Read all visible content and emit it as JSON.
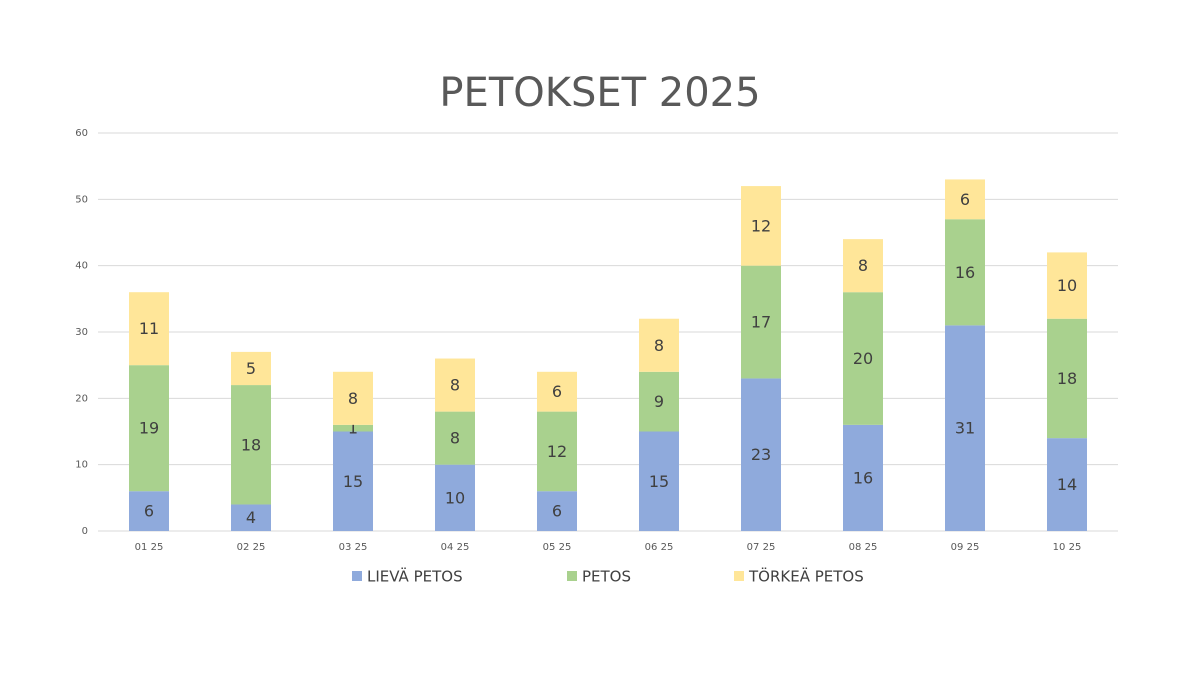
{
  "chart_data": {
    "type": "stacked_bar",
    "title": "PETOKSET 2025",
    "categories": [
      "01 25",
      "02 25",
      "03 25",
      "04 25",
      "05 25",
      "06 25",
      "07 25",
      "08 25",
      "09 25",
      "10 25"
    ],
    "series": [
      {
        "name": "LIEVÄ PETOS",
        "color": "#8faadc",
        "values": [
          6,
          4,
          15,
          10,
          6,
          15,
          23,
          16,
          31,
          14
        ]
      },
      {
        "name": "PETOS",
        "color": "#a9d18e",
        "values": [
          19,
          18,
          1,
          8,
          12,
          9,
          17,
          20,
          16,
          18
        ]
      },
      {
        "name": "TÖRKEÄ PETOS",
        "color": "#ffe699",
        "values": [
          11,
          5,
          8,
          8,
          6,
          8,
          12,
          8,
          6,
          10
        ]
      }
    ],
    "ylim": [
      0,
      60
    ],
    "yticks": [
      0,
      10,
      20,
      30,
      40,
      50,
      60
    ],
    "grid": true,
    "legend": "bottom"
  }
}
